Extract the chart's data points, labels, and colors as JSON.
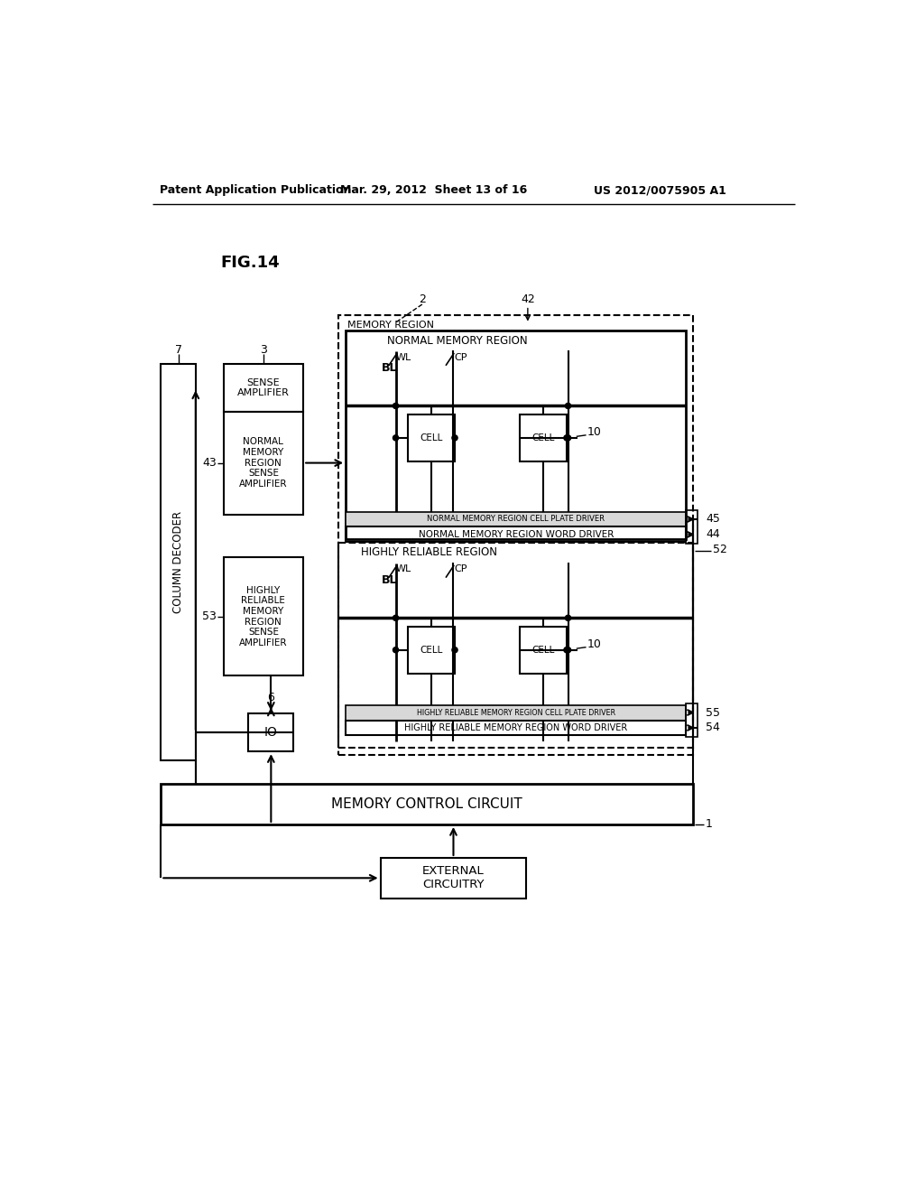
{
  "background_color": "#ffffff",
  "header_left": "Patent Application Publication",
  "header_center": "Mar. 29, 2012  Sheet 13 of 16",
  "header_right": "US 2012/0075905 A1",
  "fig_label": "FIG.14"
}
